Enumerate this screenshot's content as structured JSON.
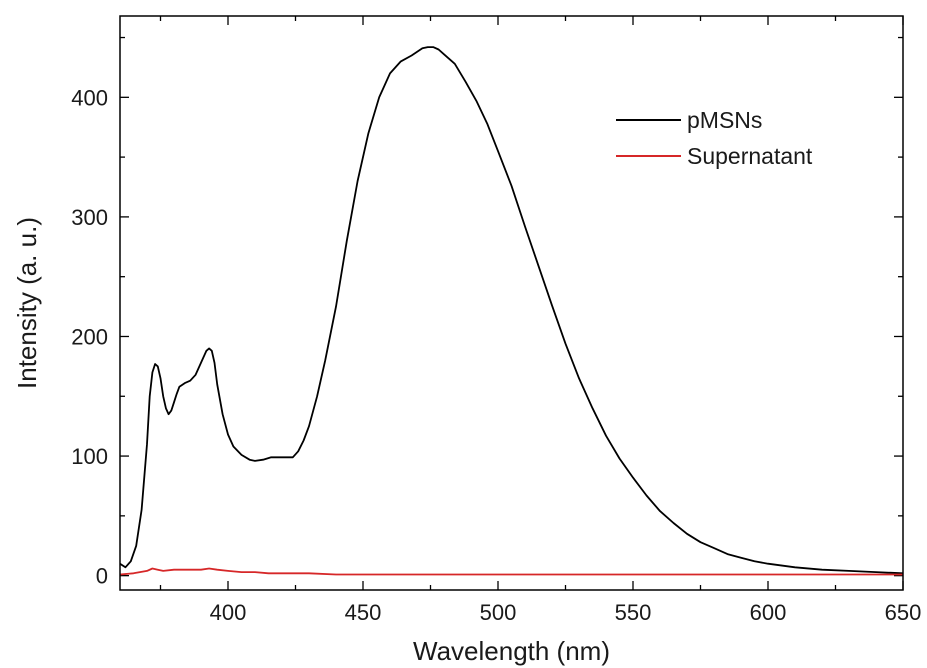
{
  "chart_data": {
    "type": "line",
    "title": "",
    "xlabel": "Wavelength (nm)",
    "ylabel": "Intensity (a. u.)",
    "xlim": [
      360,
      650
    ],
    "ylim": [
      -12,
      468
    ],
    "x_ticks": [
      400,
      450,
      500,
      550,
      600,
      650
    ],
    "x_tick_labels": [
      "400",
      "450",
      "500",
      "550",
      "600",
      "650"
    ],
    "y_ticks": [
      0,
      100,
      200,
      300,
      400
    ],
    "y_tick_labels": [
      "0",
      "100",
      "200",
      "300",
      "400"
    ],
    "grid": false,
    "legend_position": "top-right",
    "series": [
      {
        "name": "pMSNs",
        "color": "#000000",
        "points": [
          [
            360,
            10
          ],
          [
            362,
            7
          ],
          [
            364,
            12
          ],
          [
            366,
            25
          ],
          [
            368,
            55
          ],
          [
            370,
            110
          ],
          [
            371,
            150
          ],
          [
            372,
            170
          ],
          [
            373,
            177
          ],
          [
            374,
            175
          ],
          [
            375,
            165
          ],
          [
            376,
            150
          ],
          [
            377,
            140
          ],
          [
            378,
            135
          ],
          [
            379,
            138
          ],
          [
            380,
            145
          ],
          [
            381,
            152
          ],
          [
            382,
            158
          ],
          [
            384,
            161
          ],
          [
            386,
            163
          ],
          [
            388,
            168
          ],
          [
            390,
            178
          ],
          [
            392,
            188
          ],
          [
            393,
            190
          ],
          [
            394,
            188
          ],
          [
            395,
            178
          ],
          [
            396,
            160
          ],
          [
            398,
            135
          ],
          [
            400,
            118
          ],
          [
            402,
            108
          ],
          [
            405,
            101
          ],
          [
            408,
            97
          ],
          [
            410,
            96
          ],
          [
            413,
            97
          ],
          [
            416,
            99
          ],
          [
            420,
            99
          ],
          [
            424,
            99
          ],
          [
            426,
            104
          ],
          [
            428,
            113
          ],
          [
            430,
            125
          ],
          [
            433,
            150
          ],
          [
            436,
            180
          ],
          [
            440,
            225
          ],
          [
            444,
            280
          ],
          [
            448,
            330
          ],
          [
            452,
            370
          ],
          [
            456,
            400
          ],
          [
            460,
            420
          ],
          [
            464,
            430
          ],
          [
            468,
            435
          ],
          [
            470,
            438
          ],
          [
            472,
            441
          ],
          [
            474,
            442
          ],
          [
            476,
            442
          ],
          [
            478,
            440
          ],
          [
            480,
            436
          ],
          [
            484,
            428
          ],
          [
            488,
            413
          ],
          [
            492,
            397
          ],
          [
            496,
            378
          ],
          [
            500,
            355
          ],
          [
            505,
            326
          ],
          [
            510,
            292
          ],
          [
            515,
            259
          ],
          [
            520,
            226
          ],
          [
            525,
            194
          ],
          [
            530,
            165
          ],
          [
            535,
            140
          ],
          [
            540,
            117
          ],
          [
            545,
            98
          ],
          [
            550,
            82
          ],
          [
            555,
            67
          ],
          [
            560,
            54
          ],
          [
            565,
            44
          ],
          [
            570,
            35
          ],
          [
            575,
            28
          ],
          [
            580,
            23
          ],
          [
            585,
            18
          ],
          [
            590,
            15
          ],
          [
            595,
            12
          ],
          [
            600,
            10
          ],
          [
            610,
            7
          ],
          [
            620,
            5
          ],
          [
            630,
            4
          ],
          [
            640,
            3
          ],
          [
            650,
            2
          ]
        ]
      },
      {
        "name": "Supernatant",
        "color": "#d62728",
        "points": [
          [
            360,
            1
          ],
          [
            365,
            2
          ],
          [
            370,
            4
          ],
          [
            372,
            6
          ],
          [
            374,
            5
          ],
          [
            376,
            4
          ],
          [
            380,
            5
          ],
          [
            385,
            5
          ],
          [
            390,
            5
          ],
          [
            393,
            6
          ],
          [
            396,
            5
          ],
          [
            400,
            4
          ],
          [
            405,
            3
          ],
          [
            410,
            3
          ],
          [
            415,
            2
          ],
          [
            420,
            2
          ],
          [
            430,
            2
          ],
          [
            440,
            1
          ],
          [
            460,
            1
          ],
          [
            480,
            1
          ],
          [
            500,
            1
          ],
          [
            520,
            1
          ],
          [
            540,
            1
          ],
          [
            560,
            1
          ],
          [
            580,
            1
          ],
          [
            600,
            1
          ],
          [
            620,
            1
          ],
          [
            640,
            1
          ],
          [
            650,
            1
          ]
        ]
      }
    ]
  }
}
